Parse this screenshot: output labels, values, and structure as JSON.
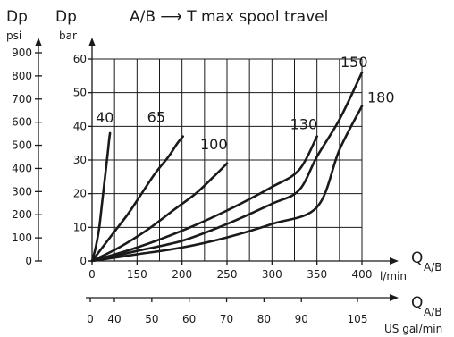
{
  "chart_data": {
    "type": "line",
    "title": "A/B ⟶ T max spool travel",
    "y_left_label": "Dp",
    "y_left_unit": "psi",
    "y_left_ticks": [
      "0",
      "100",
      "200",
      "300",
      "400",
      "500",
      "600",
      "700",
      "800",
      "900"
    ],
    "y_right_label": "Dp",
    "y_right_unit": "bar",
    "ylim": [
      0,
      60
    ],
    "y_ticks": [
      "0",
      "10",
      "20",
      "30",
      "40",
      "50",
      "60"
    ],
    "y_tick_values": [
      0,
      10,
      20,
      30,
      40,
      50,
      60
    ],
    "x_label": "Q",
    "x_label_sub": "A/B",
    "x_unit": "l/min",
    "x_ticks": [
      "0",
      "150",
      "200",
      "250",
      "300",
      "350",
      "400"
    ],
    "x_tick_values": [
      100,
      150,
      200,
      250,
      300,
      350,
      400
    ],
    "x_ticks_note": "first tick is printed as 0",
    "x2_label": "Q",
    "x2_label_sub": "A/B",
    "x2_unit": "US gal/min",
    "x2_ticks": [
      "0",
      "40",
      "50",
      "60",
      "70",
      "80",
      "90",
      "105"
    ],
    "grid": true,
    "series": [
      {
        "name": "40",
        "x": [
          100,
          104,
          108,
          111,
          114,
          117,
          119,
          120
        ],
        "y": [
          0,
          4,
          10,
          17,
          24,
          31,
          36,
          38
        ]
      },
      {
        "name": "65",
        "x": [
          100,
          120,
          140,
          155,
          170,
          185,
          195,
          201
        ],
        "y": [
          0,
          7,
          14,
          20,
          26,
          31,
          35,
          37
        ]
      },
      {
        "name": "100",
        "x": [
          100,
          130,
          160,
          190,
          215,
          235,
          250
        ],
        "y": [
          0,
          4,
          9,
          15,
          20,
          25,
          29
        ]
      },
      {
        "name": "130",
        "x": [
          100,
          150,
          200,
          250,
          300,
          330,
          350
        ],
        "y": [
          0,
          4,
          9,
          15,
          22,
          27,
          37
        ]
      },
      {
        "name": "150",
        "x": [
          100,
          150,
          200,
          250,
          300,
          330,
          350,
          375,
          400
        ],
        "y": [
          0,
          3,
          6,
          11,
          17,
          21,
          31,
          42,
          56
        ]
      },
      {
        "name": "180",
        "x": [
          100,
          150,
          200,
          250,
          300,
          350,
          375,
          400
        ],
        "y": [
          0,
          2,
          4,
          7,
          11,
          16,
          33,
          46
        ]
      }
    ]
  }
}
